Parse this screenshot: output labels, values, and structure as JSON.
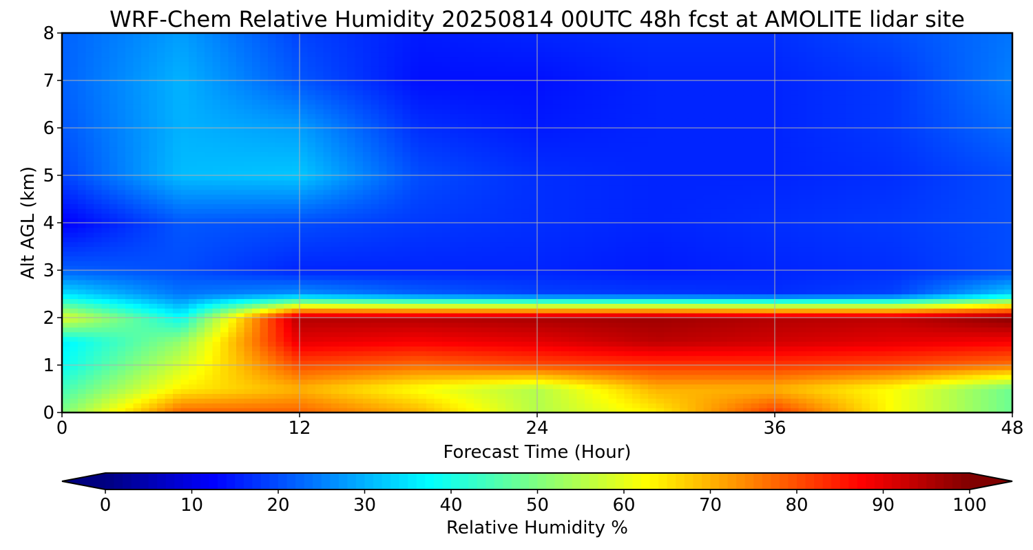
{
  "chart_data": {
    "type": "heatmap",
    "title": "WRF-Chem Relative Humidity 20250814 00UTC 48h fcst at AMOLITE lidar site",
    "xlabel": "Forecast Time (Hour)",
    "ylabel": "Alt AGL (km)",
    "xlim": [
      0,
      48
    ],
    "ylim": [
      0,
      8
    ],
    "xticks": [
      0,
      12,
      24,
      36,
      48
    ],
    "yticks": [
      0,
      1,
      2,
      3,
      4,
      5,
      6,
      7,
      8
    ],
    "grid": true,
    "colorbar": {
      "label": "Relative Humidity %",
      "orientation": "horizontal",
      "range": [
        0,
        100
      ],
      "ticks": [
        0,
        10,
        20,
        30,
        40,
        50,
        60,
        70,
        80,
        90,
        100
      ],
      "extend": "both",
      "colormap": "jet"
    },
    "x": [
      0,
      6,
      12,
      18,
      24,
      30,
      36,
      42,
      48
    ],
    "y": [
      0,
      0.5,
      1,
      1.5,
      2,
      2.5,
      3,
      4,
      5,
      6,
      7,
      8
    ],
    "z": [
      [
        50,
        78,
        78,
        70,
        55,
        64,
        82,
        62,
        48
      ],
      [
        44,
        64,
        70,
        62,
        55,
        70,
        70,
        62,
        48
      ],
      [
        38,
        58,
        80,
        77,
        80,
        82,
        82,
        80,
        76
      ],
      [
        36,
        52,
        90,
        88,
        90,
        94,
        92,
        90,
        88
      ],
      [
        60,
        38,
        95,
        95,
        96,
        97,
        95,
        94,
        99
      ],
      [
        35,
        24,
        27,
        22,
        19,
        18,
        17,
        19,
        33
      ],
      [
        22,
        20,
        16,
        16,
        16,
        15,
        16,
        17,
        20
      ],
      [
        12,
        21,
        20,
        18,
        17,
        16,
        17,
        18,
        20
      ],
      [
        19,
        31,
        32,
        20,
        17,
        16,
        16,
        17,
        20
      ],
      [
        21,
        30,
        28,
        17,
        15,
        16,
        16,
        18,
        23
      ],
      [
        22,
        30,
        21,
        14,
        14,
        16,
        16,
        18,
        25
      ],
      [
        22,
        28,
        19,
        15,
        16,
        17,
        17,
        20,
        24
      ]
    ]
  }
}
